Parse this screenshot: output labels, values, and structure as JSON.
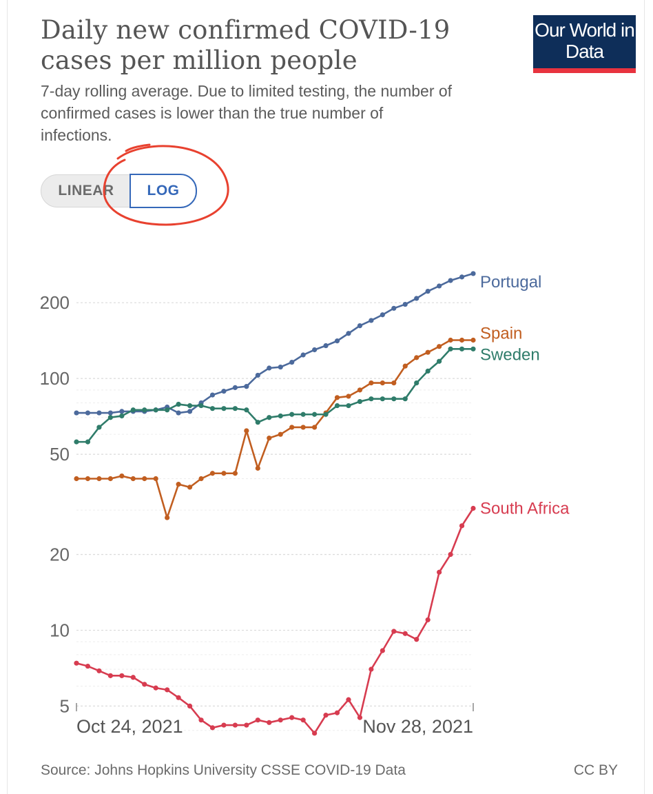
{
  "header": {
    "title": "Daily new confirmed COVID-19 cases per million people",
    "subtitle": "7-day rolling average. Due to limited testing, the number of confirmed cases is lower than the true number of infections.",
    "logo_text": "Our World in Data"
  },
  "toggle": {
    "linear_label": "LINEAR",
    "log_label": "LOG",
    "selected": "LOG"
  },
  "footer": {
    "source": "Source: Johns Hopkins University CSSE COVID-19 Data",
    "license": "CC BY"
  },
  "colors": {
    "portugal": "#4c6a9c",
    "spain": "#c15e20",
    "sweden": "#2f7c6a",
    "south_africa": "#d73c50",
    "annotation": "#e8412f",
    "logo_bg": "#0e2e59",
    "logo_bar": "#e8333f"
  },
  "chart_data": {
    "type": "line",
    "yscale": "log",
    "ylim": [
      4,
      300
    ],
    "yticks": [
      5,
      10,
      20,
      50,
      100,
      200
    ],
    "ytick_labels": [
      "5",
      "10",
      "20",
      "50",
      "100",
      "200"
    ],
    "x_start_label": "Oct 24, 2021",
    "x_end_label": "Nov 28, 2021",
    "x_days": 36,
    "grid": true,
    "series": [
      {
        "name": "Portugal",
        "color": "#4c6a9c",
        "values": [
          73,
          73,
          73,
          73,
          74,
          74,
          74,
          75,
          77,
          73,
          74,
          80,
          86,
          89,
          92,
          93,
          103,
          110,
          111,
          116,
          124,
          130,
          135,
          141,
          151,
          162,
          170,
          179,
          190,
          197,
          208,
          222,
          233,
          245,
          253,
          261
        ]
      },
      {
        "name": "Spain",
        "color": "#c15e20",
        "values": [
          40,
          40,
          40,
          40,
          41,
          40,
          40,
          40,
          28,
          38,
          37,
          40,
          42,
          42,
          42,
          62,
          44,
          58,
          60,
          64,
          64,
          64,
          73,
          84,
          85,
          90,
          96,
          96,
          96,
          112,
          121,
          127,
          134,
          142,
          142,
          142
        ]
      },
      {
        "name": "Sweden",
        "color": "#2f7c6a",
        "values": [
          56,
          56,
          64,
          70,
          71,
          75,
          75,
          75,
          75,
          79,
          78,
          78,
          76,
          76,
          76,
          75,
          67,
          70,
          71,
          72,
          72,
          72,
          72,
          78,
          78,
          81,
          83,
          83,
          83,
          83,
          96,
          107,
          117,
          131,
          131,
          131
        ]
      },
      {
        "name": "South Africa",
        "color": "#d73c50",
        "values": [
          7.4,
          7.2,
          6.9,
          6.6,
          6.6,
          6.5,
          6.1,
          5.9,
          5.8,
          5.4,
          5.0,
          4.4,
          4.1,
          4.2,
          4.2,
          4.2,
          4.4,
          4.3,
          4.4,
          4.5,
          4.4,
          3.9,
          4.6,
          4.7,
          5.3,
          4.5,
          7.0,
          8.3,
          9.9,
          9.7,
          9.2,
          11.0,
          17.0,
          20.0,
          26.0,
          30.5
        ]
      }
    ]
  }
}
